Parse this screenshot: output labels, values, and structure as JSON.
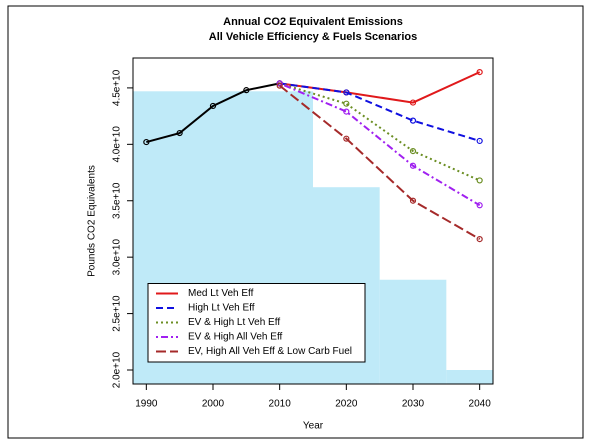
{
  "chart_data": {
    "type": "line",
    "title": "Annual CO2 Equivalent Emissions",
    "subtitle": "All Vehicle Efficiency & Fuels Scenarios",
    "x_label": "Year",
    "y_label": "Pounds CO2 Equivalents",
    "x": [
      1990,
      1995,
      2000,
      2005,
      2010,
      2020,
      2030,
      2040
    ],
    "xlim": [
      1988,
      2042
    ],
    "xticks": [
      1990,
      2000,
      2010,
      2020,
      2030,
      2040
    ],
    "ylim": [
      18760000000,
      47650000000
    ],
    "yticks": [
      {
        "value": 20000000000,
        "label": "2.0e+10"
      },
      {
        "value": 25000000000,
        "label": "2.5e+10"
      },
      {
        "value": 30000000000,
        "label": "3.0e+10"
      },
      {
        "value": 35000000000,
        "label": "3.5e+10"
      },
      {
        "value": 40000000000,
        "label": "4.0e+10"
      },
      {
        "value": 45000000000,
        "label": "4.5e+10"
      }
    ],
    "legend": "bottom-left",
    "area": {
      "color": "#bfeaf8",
      "bins": [
        1988,
        2015,
        2025,
        2035,
        2042
      ],
      "values": [
        44700000000,
        36200000000,
        28000000000,
        20000000000
      ]
    },
    "series": [
      {
        "color": "#000000",
        "dash": "solid",
        "values": [
          40200000000,
          41000000000,
          43400000000,
          44800000000,
          45400000000,
          null,
          null,
          null
        ]
      },
      {
        "name": "Med Lt Veh Eff",
        "color": "#e0191b",
        "dash": "solid",
        "values": [
          null,
          null,
          null,
          null,
          45400000000,
          44600000000,
          43700000000,
          46400000000
        ]
      },
      {
        "name": "High Lt Veh Eff",
        "color": "#1010e0",
        "dash": "dashed",
        "values": [
          null,
          null,
          null,
          null,
          45400000000,
          44600000000,
          42100000000,
          40300000000
        ]
      },
      {
        "name": "EV & High Lt Veh Eff",
        "color": "#6b8e23",
        "dash": "dotted",
        "values": [
          null,
          null,
          null,
          null,
          45400000000,
          43600000000,
          39400000000,
          36800000000
        ]
      },
      {
        "name": "EV & High All Veh Eff",
        "color": "#a020f0",
        "dash": "dotdash",
        "values": [
          null,
          null,
          null,
          null,
          45400000000,
          42900000000,
          38100000000,
          34600000000
        ]
      },
      {
        "name": "EV, High All Veh Eff & Low Carb Fuel",
        "color": "#a52a2a",
        "dash": "longdash",
        "values": [
          null,
          null,
          null,
          null,
          45200000000,
          40500000000,
          35000000000,
          31600000000
        ]
      }
    ]
  }
}
